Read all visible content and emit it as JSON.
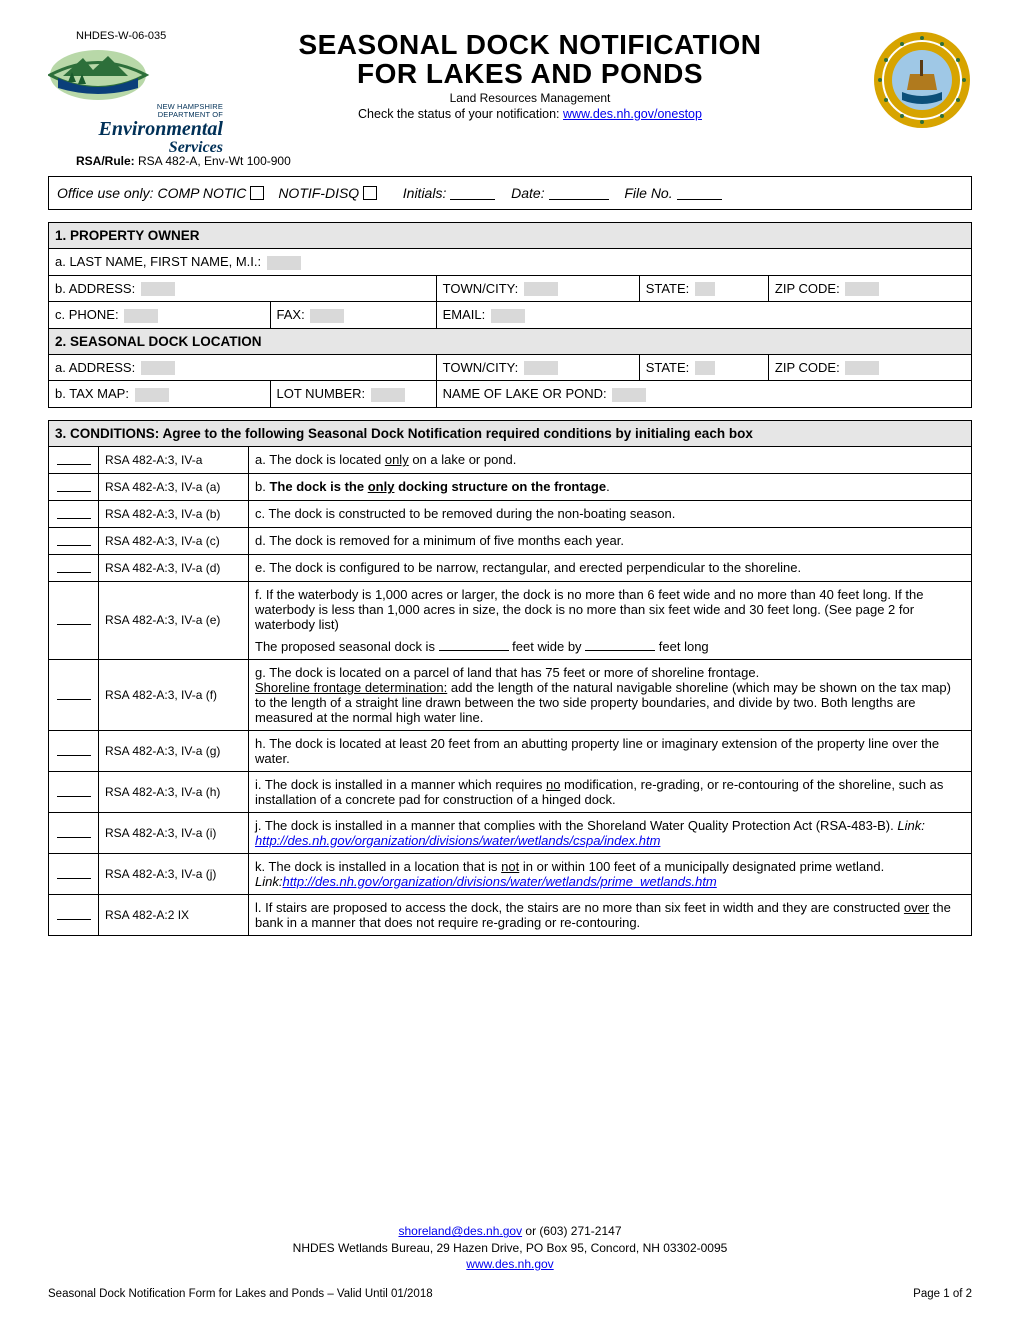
{
  "form_id": "NHDES-W-06-035",
  "logo": {
    "line1": "NEW HAMPSHIRE",
    "line2": "DEPARTMENT OF",
    "line3": "Environmental",
    "line4": "Services",
    "graphic_colors": {
      "sky": "#b8d8a8",
      "berm": "#2d6f3a",
      "water": "#0a3f7a",
      "tree": "#1a5c2e"
    }
  },
  "title_line1": "SEASONAL DOCK NOTIFICATION",
  "title_line2": "FOR LAKES AND PONDS",
  "subtitle": "Land Resources Management",
  "check_status_prefix": "Check the status of your notification: ",
  "check_status_link_text": "www.des.nh.gov/onestop",
  "rsa_rule_label": "RSA/Rule:",
  "rsa_rule_value": "RSA 482-A, Env-Wt 100-900",
  "seal_colors": {
    "outer": "#d7a400",
    "inner": "#0b4f7a",
    "ship": "#b07a1e"
  },
  "office_use": {
    "prefix": "Office use only:",
    "comp": "COMP NOTIC",
    "disq": "NOTIF-DISQ",
    "initials": "Initials:",
    "date": "Date:",
    "file": "File No."
  },
  "section1": {
    "heading": "1. PROPERTY OWNER",
    "a": "a. LAST NAME, FIRST NAME, M.I.:",
    "b": "b. ADDRESS:",
    "town": "TOWN/CITY:",
    "state": "STATE:",
    "zip": "ZIP CODE:",
    "c": "c. PHONE:",
    "fax": "FAX:",
    "email": "EMAIL:"
  },
  "section2": {
    "heading": "2. SEASONAL DOCK LOCATION",
    "a": "a. ADDRESS:",
    "town": "TOWN/CITY:",
    "state": "STATE:",
    "zip": "ZIP CODE:",
    "b": "b. TAX MAP:",
    "lot": "LOT NUMBER:",
    "lake": "NAME OF LAKE OR POND:"
  },
  "section3": {
    "heading": "3. CONDITIONS:  Agree to the following Seasonal Dock Notification required conditions by initialing each box",
    "rows": [
      {
        "ref": "RSA 482-A:3, IV-a",
        "text_html": "a. The dock is located <span class='underline'>only</span> on a lake or pond."
      },
      {
        "ref": "RSA 482-A:3, IV-a (a)",
        "text_html": "b. <b>The dock is the <span class='underline'>only</span> docking structure on the frontage</b>."
      },
      {
        "ref": "RSA 482-A:3, IV-a (b)",
        "text_html": "c. The dock is constructed to be removed during the non-boating season."
      },
      {
        "ref": "RSA 482-A:3, IV-a (c)",
        "text_html": "d. The dock is removed for a minimum of five months each year."
      },
      {
        "ref": "RSA 482-A:3, IV-a (d)",
        "text_html": "e. The dock is configured to be narrow, rectangular, and erected perpendicular to the shoreline."
      },
      {
        "ref": "RSA 482-A:3, IV-a (e)",
        "text_html": "f. If the waterbody is 1,000 acres or larger, the dock is no more than 6 feet wide and no more than 40 feet long.  If the waterbody is less than 1,000 acres in size, the dock is no more than six feet wide and 30 feet long.  (See page 2 for waterbody list)<div class='cond-f-sub'>The proposed seasonal dock is <span class='dims-blank'></span> feet wide by <span class='dims-blank'></span> feet long</div>"
      },
      {
        "ref": "RSA 482-A:3, IV-a (f)",
        "text_html": "g. The dock is located on a parcel of land that has 75 feet or more of shoreline frontage.<br><span class='underline'>Shoreline frontage determination:</span> add the length of the natural navigable shoreline (which may be shown on the tax map) to the length of a straight line drawn between the two side property boundaries, and divide by two.  Both lengths are measured at the normal high water line."
      },
      {
        "ref": "RSA 482-A:3, IV-a (g)",
        "text_html": "h. The dock is located at least 20 feet from an abutting property line or imaginary extension of the property line over the water."
      },
      {
        "ref": "RSA 482-A:3, IV-a (h)",
        "text_html": "i. The dock is installed in a manner which requires <span class='underline'>no</span> modification, re-grading, or re-contouring of the shoreline, such as installation of a concrete pad for construction of a hinged dock."
      },
      {
        "ref": "RSA 482-A:3, IV-a (i)",
        "text_html": "j. The dock is installed in a manner that complies with the Shoreland Water Quality Protection Act (RSA-483-B). <i>Link: <a class='link' href='#'>http://des.nh.gov/organization/divisions/water/wetlands/cspa/index.htm</a></i>"
      },
      {
        "ref": "RSA 482-A:3, IV-a (j)",
        "text_html": "k. The dock is installed in a location that is <span class='underline'>not</span> in or within 100 feet of a municipally designated prime wetland.  <i>Link:<a class='link' href='#'>http://des.nh.gov/organization/divisions/water/wetlands/prime_wetlands.htm</a></i>"
      },
      {
        "ref": "RSA 482-A:2 IX",
        "text_html": "l. If stairs are proposed to access the dock, the stairs are no more than six feet in width and they are constructed <span class='underline'>over</span> the bank in a manner that does not require re-grading or re-contouring."
      }
    ]
  },
  "footer": {
    "email": "shoreland@des.nh.gov",
    "phone_suffix": " or (603) 271-2147",
    "address": "NHDES Wetlands Bureau, 29 Hazen Drive, PO Box 95, Concord, NH  03302-0095",
    "website": "www.des.nh.gov",
    "bottom_left": "Seasonal Dock Notification Form for Lakes and Ponds – Valid Until 01/2018",
    "bottom_right": "Page 1 of 2"
  }
}
